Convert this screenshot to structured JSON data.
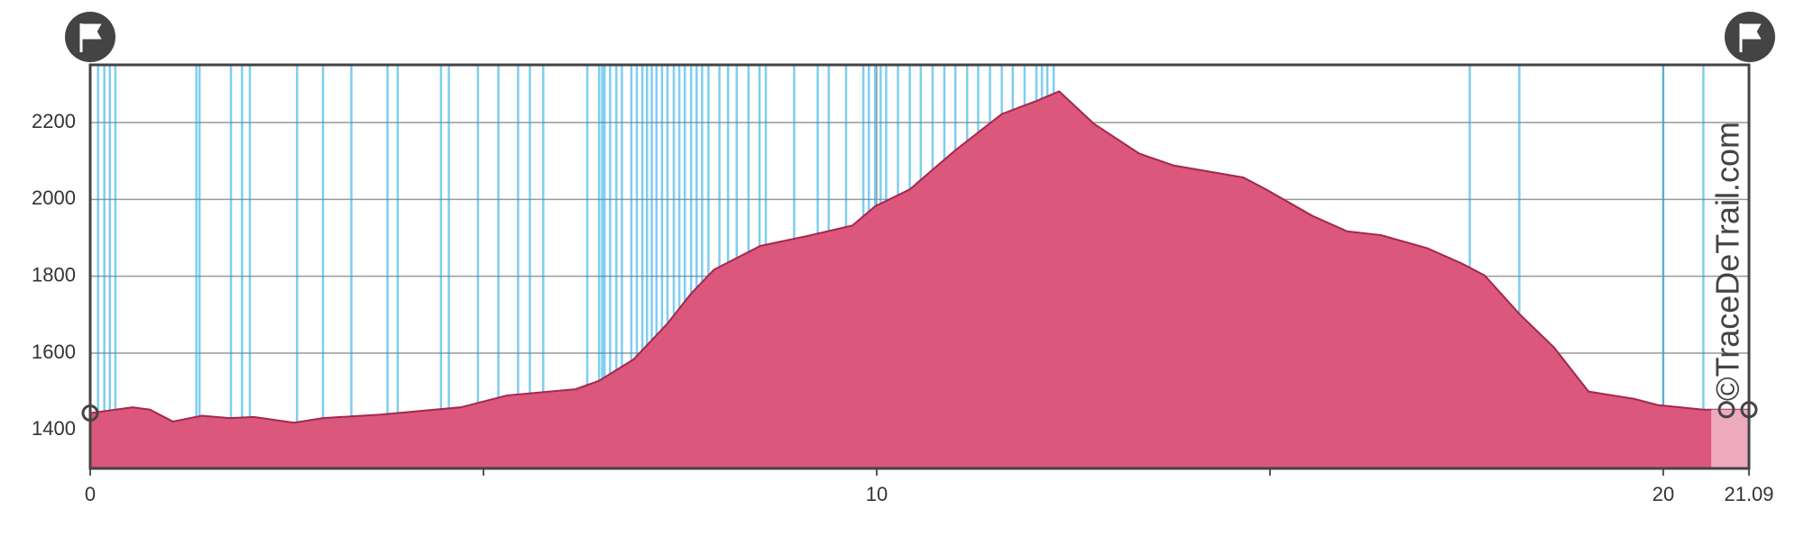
{
  "chart_data": {
    "type": "area",
    "watermark": "©TraceDeTrail.com",
    "x": [
      0,
      0.54,
      0.76,
      1.05,
      1.42,
      1.78,
      2.08,
      2.59,
      2.96,
      3.69,
      4.71,
      5.3,
      6.17,
      6.47,
      6.91,
      7.34,
      7.64,
      7.93,
      8.52,
      9.1,
      9.69,
      9.98,
      10.42,
      11.0,
      11.59,
      12.03,
      12.32,
      12.76,
      13.34,
      13.78,
      14.66,
      14.95,
      15.54,
      15.98,
      16.41,
      17.0,
      17.44,
      17.73,
      18.17,
      18.61,
      19.05,
      19.63,
      19.93,
      20.51,
      21.09
    ],
    "series": [
      {
        "color": "#db577c",
        "values": [
          1444,
          1459,
          1453,
          1422,
          1437,
          1431,
          1434,
          1419,
          1431,
          1440,
          1459,
          1490,
          1506,
          1528,
          1584,
          1677,
          1755,
          1817,
          1879,
          1904,
          1932,
          1982,
          2026,
          2128,
          2222,
          2256,
          2281,
          2197,
          2119,
          2088,
          2057,
          2026,
          1957,
          1917,
          1907,
          1873,
          1833,
          1802,
          1702,
          1615,
          1500,
          1481,
          1465,
          1453,
          1453
        ]
      }
    ],
    "markers": {
      "color": "#14a6e6",
      "x": [
        0.1,
        0.18,
        0.25,
        0.32,
        1.35,
        1.39,
        1.79,
        1.93,
        2.03,
        2.63,
        2.96,
        3.32,
        3.78,
        3.91,
        4.46,
        4.56,
        4.93,
        5.19,
        5.44,
        5.59,
        5.76,
        6.32,
        6.47,
        6.51,
        6.54,
        6.61,
        6.69,
        6.76,
        6.88,
        6.95,
        7.02,
        7.08,
        7.14,
        7.2,
        7.27,
        7.34,
        7.42,
        7.49,
        7.56,
        7.64,
        7.71,
        7.78,
        7.86,
        8.0,
        8.11,
        8.22,
        8.37,
        8.51,
        8.59,
        8.95,
        9.25,
        9.39,
        9.61,
        9.83,
        9.9,
        9.98,
        10.05,
        10.12,
        10.27,
        10.42,
        10.56,
        10.71,
        10.86,
        11.0,
        11.15,
        11.29,
        11.44,
        11.59,
        11.73,
        11.88,
        12.03,
        12.1,
        12.17,
        12.25,
        17.54,
        18.17,
        20.0,
        20.51
      ]
    },
    "highlight": {
      "color": "#eeaabd",
      "x": [
        20.61,
        21.09
      ]
    },
    "xlim": [
      0,
      21.09
    ],
    "ylim": [
      1300,
      2350
    ],
    "xticks": [
      0,
      10,
      20,
      21.09
    ],
    "xminor_ticks": [
      5,
      15
    ],
    "yticks": [
      1400,
      1600,
      1800,
      2000,
      2200
    ],
    "grid": true
  }
}
